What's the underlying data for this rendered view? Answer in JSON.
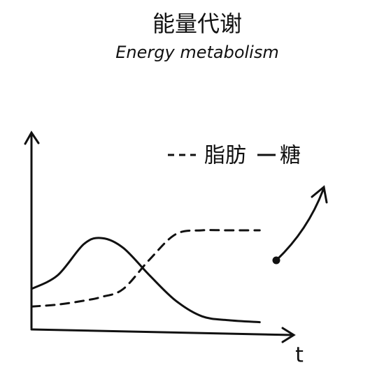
{
  "chart_data": {
    "type": "line",
    "title": "能量代谢",
    "subtitle": "Energy metabolism",
    "x_label": "t",
    "x": [
      0,
      1,
      2,
      2.7,
      3.5,
      4.5,
      5.5,
      6.5,
      7.5,
      8.7
    ],
    "series": [
      {
        "name": "脂肪",
        "color": "#111111",
        "dash": true,
        "values": [
          1.1,
          1.2,
          1.4,
          1.6,
          2.0,
          3.5,
          4.8,
          5.0,
          5.0,
          5.0
        ]
      },
      {
        "name": "糖",
        "color": "#111111",
        "dash": false,
        "values": [
          2.0,
          2.7,
          4.3,
          4.6,
          4.1,
          2.7,
          1.4,
          0.6,
          0.4,
          0.3
        ]
      }
    ],
    "xlim": [
      0,
      10
    ],
    "ylim": [
      0,
      10
    ],
    "grid": false
  }
}
